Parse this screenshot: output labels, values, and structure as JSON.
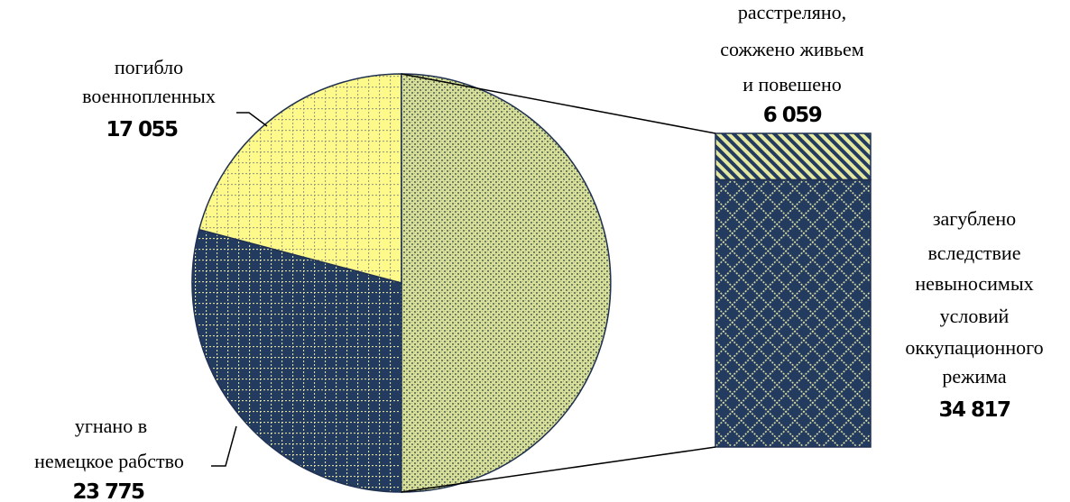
{
  "chart_data": {
    "type": "bar-of-pie",
    "pie": {
      "slices": [
        {
          "label": [
            "расстреляно, сожжено живьем и повешено + загублено вследствие невыносимых условий оккупационного режима"
          ],
          "value": 40876,
          "pattern": "small-check",
          "is_split": true
        },
        {
          "label": [
            "угнано в",
            "немецкое рабство"
          ],
          "value": 23775,
          "value_text": "23 775",
          "pattern": "navy-grid"
        },
        {
          "label": [
            "погибло",
            "военнопленных"
          ],
          "value": 17055,
          "value_text": "17 055",
          "pattern": "yellow-grid"
        }
      ]
    },
    "bar": {
      "segments": [
        {
          "label": [
            "расстреляно,",
            "сожжено живьем",
            "и повешено"
          ],
          "value": 6059,
          "value_text": "6 059",
          "pattern": "diagonal-stripes"
        },
        {
          "label": [
            "загублено",
            "вследствие",
            "невыносимых",
            "условий",
            "оккупационного",
            "режима"
          ],
          "value": 34817,
          "value_text": "34 817",
          "pattern": "navy-diamond"
        }
      ]
    },
    "colors": {
      "navy": "#243b60",
      "yellow": "#fdf98a",
      "olive_light": "#d8e09a",
      "line": "#000000"
    }
  }
}
